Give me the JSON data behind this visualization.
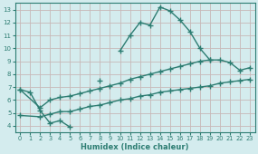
{
  "line1_x": [
    0,
    1,
    2,
    3,
    4,
    5,
    6,
    7,
    8,
    9,
    10,
    11,
    12,
    13,
    14,
    15,
    16,
    17,
    18,
    19,
    20,
    21,
    22
  ],
  "line1_y": [
    6.8,
    6.6,
    5.2,
    4.2,
    4.4,
    3.9,
    null,
    null,
    7.5,
    null,
    9.8,
    11.0,
    12.0,
    11.8,
    13.2,
    12.9,
    12.2,
    11.3,
    10.0,
    9.1,
    null,
    null,
    null
  ],
  "line2_x": [
    0,
    2,
    3,
    4,
    5,
    6,
    7,
    8,
    9,
    10,
    11,
    12,
    13,
    14,
    15,
    16,
    17,
    18,
    19,
    20,
    21,
    22,
    23
  ],
  "line2_y": [
    6.8,
    5.4,
    6.0,
    6.2,
    6.3,
    6.5,
    6.7,
    6.9,
    7.1,
    7.3,
    7.6,
    7.8,
    8.0,
    8.2,
    8.4,
    8.6,
    8.8,
    9.0,
    9.1,
    9.1,
    8.9,
    8.3,
    8.5
  ],
  "line3_x": [
    0,
    2,
    3,
    4,
    5,
    6,
    7,
    8,
    9,
    10,
    11,
    12,
    13,
    14,
    15,
    16,
    17,
    18,
    19,
    20,
    21,
    22,
    23
  ],
  "line3_y": [
    4.8,
    4.7,
    4.9,
    5.1,
    5.1,
    5.3,
    5.5,
    5.6,
    5.8,
    6.0,
    6.1,
    6.3,
    6.4,
    6.6,
    6.7,
    6.8,
    6.9,
    7.0,
    7.1,
    7.3,
    7.4,
    7.5,
    7.6
  ],
  "line_color": "#2d7d72",
  "bg_color": "#d4ecee",
  "grid_color": "#c0d8da",
  "xlabel": "Humidex (Indice chaleur)",
  "xlim": [
    -0.5,
    23.5
  ],
  "ylim": [
    3.5,
    13.5
  ],
  "yticks": [
    4,
    5,
    6,
    7,
    8,
    9,
    10,
    11,
    12,
    13
  ],
  "xticks": [
    0,
    1,
    2,
    3,
    4,
    5,
    6,
    7,
    8,
    9,
    10,
    11,
    12,
    13,
    14,
    15,
    16,
    17,
    18,
    19,
    20,
    21,
    22,
    23
  ],
  "marker": "+",
  "markersize": 4.0,
  "linewidth": 1.0
}
